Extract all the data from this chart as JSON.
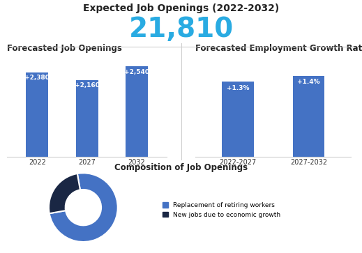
{
  "title": "Expected Job Openings (2022-2032)",
  "big_number": "21,810",
  "big_number_color": "#29abe2",
  "bar_chart_title": "Forecasted Job Openings",
  "bar_years": [
    "2022",
    "2027",
    "2032"
  ],
  "bar_values": [
    2380,
    2160,
    2540
  ],
  "bar_labels": [
    "+2,380",
    "+2,160",
    "+2,540"
  ],
  "bar_color": "#4472c4",
  "growth_chart_title": "Forecasted Employment Growth Rate",
  "growth_categories": [
    "2022-2027",
    "2027-2032"
  ],
  "growth_values": [
    1.3,
    1.4
  ],
  "growth_labels": [
    "+1.3%",
    "+1.4%"
  ],
  "growth_bar_color": "#4472c4",
  "donut_title": "Composition of Job Openings",
  "donut_values": [
    75,
    25
  ],
  "donut_colors": [
    "#4472c4",
    "#1a2744"
  ],
  "legend_labels": [
    "Replacement of retiring workers",
    "New jobs due to economic growth"
  ],
  "background_color": "#ffffff",
  "divider_color": "#d0d0d0",
  "axis_label_color": "#333333",
  "title_font_size": 10,
  "big_number_font_size": 28,
  "section_title_font_size": 8.5
}
